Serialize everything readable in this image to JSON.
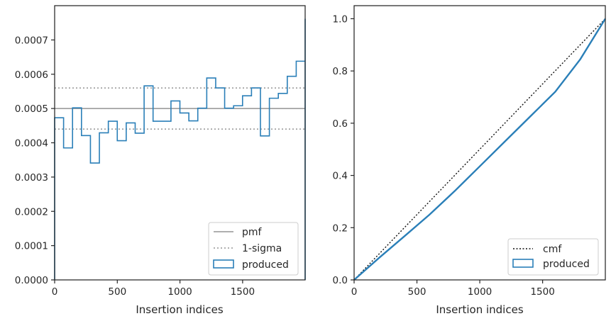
{
  "colors": {
    "produced": "#2a7fb8",
    "pmf": "#7f7f7f",
    "cmf": "#111111",
    "axis": "#262626"
  },
  "chart_data": [
    {
      "type": "histogram",
      "xlabel": "Insertion indices",
      "ylabel": "",
      "xlim": [
        0,
        1999
      ],
      "ylim": [
        0,
        0.0008
      ],
      "x_ticks": [
        0,
        500,
        1000,
        1500
      ],
      "x_tick_labels": [
        "0",
        "500",
        "1000",
        "1500"
      ],
      "y_ticks": [
        0,
        0.0001,
        0.0002,
        0.0003,
        0.0004,
        0.0005,
        0.0006,
        0.0007
      ],
      "y_tick_labels": [
        "0.0000",
        "0.0001",
        "0.0002",
        "0.0003",
        "0.0004",
        "0.0005",
        "0.0006",
        "0.0007"
      ],
      "bin_width": 71.4,
      "bin_values": [
        0.000473,
        0.000385,
        0.000502,
        0.000421,
        0.000341,
        0.000429,
        0.000463,
        0.000406,
        0.000458,
        0.000428,
        0.000566,
        0.000463,
        0.000463,
        0.000522,
        0.000487,
        0.000464,
        0.000501,
        0.000589,
        0.00056,
        0.000501,
        0.000508,
        0.000537,
        0.00056,
        0.00042,
        0.00053,
        0.000544,
        0.000594,
        0.000638,
        0.00076
      ],
      "pmf": 0.0005,
      "sigma_band": [
        0.00044,
        0.00056
      ],
      "legend": [
        "pmf",
        "1-sigma",
        "produced"
      ],
      "legend_position": "lower-right"
    },
    {
      "type": "line",
      "xlabel": "Insertion indices",
      "ylabel": "",
      "xlim": [
        0,
        1999
      ],
      "ylim": [
        0,
        1.05
      ],
      "x_ticks": [
        0,
        500,
        1000,
        1500
      ],
      "x_tick_labels": [
        "0",
        "500",
        "1000",
        "1500"
      ],
      "y_ticks": [
        0,
        0.2,
        0.4,
        0.6,
        0.8,
        1.0
      ],
      "y_tick_labels": [
        "0.0",
        "0.2",
        "0.4",
        "0.6",
        "0.8",
        "1.0"
      ],
      "series": [
        {
          "name": "cmf",
          "x": [
            0,
            1999
          ],
          "y": [
            0,
            1.0
          ]
        },
        {
          "name": "produced",
          "x": [
            0,
            200,
            400,
            600,
            800,
            1000,
            1200,
            1400,
            1600,
            1800,
            1999
          ],
          "y": [
            0,
            0.085,
            0.167,
            0.25,
            0.34,
            0.435,
            0.53,
            0.625,
            0.72,
            0.845,
            1.0
          ]
        }
      ],
      "legend": [
        "cmf",
        "produced"
      ],
      "legend_position": "lower-right"
    }
  ]
}
